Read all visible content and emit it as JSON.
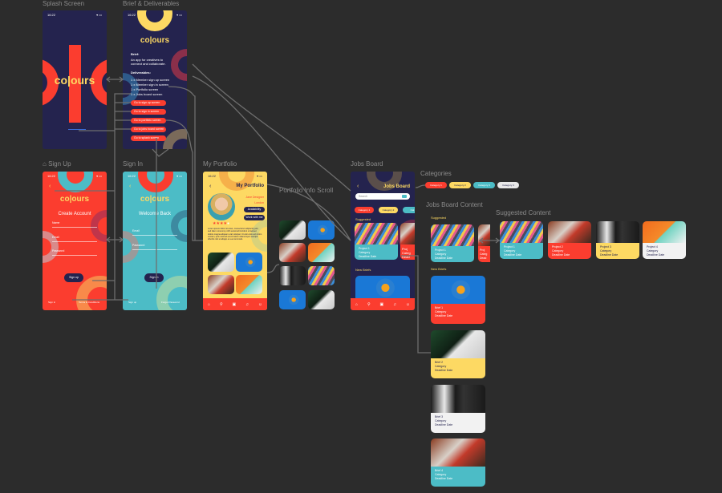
{
  "labels": {
    "splash": "Splash Screen",
    "brief": "Brief & Deliverables",
    "signup": "Sign Up",
    "signin": "Sign In",
    "portfolio": "My Portfolio",
    "scroll": "Portfolio Info Scroll",
    "jobs": "Jobs Board",
    "categories": "Categories",
    "jobs_content": "Jobs Board Content",
    "suggested_content": "Suggested Content"
  },
  "status": {
    "time": "16:22",
    "icons": "▾ ▭"
  },
  "logo": "co|ours",
  "brief": {
    "brief_heading": "Brief:",
    "brief_text_1": "An app for creatives to",
    "brief_text_2": "connect and collaborate.",
    "deliverables_heading": "Deliverables:",
    "deliverables": [
      "1 x Member sign up screen",
      "1 x Member sign in screen",
      "1 x Portfolio screen",
      "1 x Jobs board screen"
    ],
    "buttons": [
      "Go to sign up screen",
      "Go to sign in screen",
      "Go to portfolio screen",
      "Go to jobs board screen",
      "Go to splash screen"
    ]
  },
  "signup": {
    "title": "Create Account",
    "fields": [
      "Name",
      "Email",
      "Password"
    ],
    "button": "Sign up",
    "footer_left": "Sign in",
    "footer_right": "Terms & Conditions"
  },
  "signin": {
    "title": "Welcome Back",
    "fields": [
      "Email",
      "Password"
    ],
    "button": "Sign In",
    "footer_left": "Sign up",
    "footer_right": "Forgot Password"
  },
  "portfolio": {
    "title": "My Portfolio",
    "name": "Jane Designer",
    "location": "London",
    "availability": "Availability",
    "work_button": "Work with me",
    "rating": 4,
    "rating_max": 5,
    "bio": "Lorem ipsum dolor sit amet, consectetur adipiscing elit, sed diam nonummy nibh euismod tincidunt ut laoreet dolore magna aliquam erat volutpat. Ut wisi enim ad minim veniam, quis nostrud exerci tation ullamcorper suscipit lobortis nisl ut aliquip ex ea commodo."
  },
  "jobs": {
    "title": "Jobs Board",
    "search_placeholder": "Search",
    "chips": [
      "Category 1",
      "Category 2",
      "Cat"
    ],
    "suggested": "Suggested",
    "new_briefs": "New Briefs",
    "card1": [
      "Project 1",
      "Category",
      "Deadline Date"
    ],
    "card2": [
      "Proj",
      "Categ",
      "Dead"
    ]
  },
  "categories": [
    "Category 1",
    "Category 2",
    "Category 3",
    "Category 4"
  ],
  "content": {
    "suggested": "Suggested",
    "new_briefs": "New Briefs",
    "suggested_cards": [
      [
        "Project 1",
        "Category",
        "Deadline Date"
      ],
      [
        "Proj",
        "Categ",
        "Dead"
      ]
    ],
    "briefs": [
      [
        "Brief 1",
        "Category",
        "Deadline Date"
      ],
      [
        "Brief 2",
        "Category",
        "Deadline Date"
      ],
      [
        "Brief 3",
        "Category",
        "Deadline Date"
      ],
      [
        "Brief 4",
        "Category",
        "Deadline Date"
      ]
    ]
  },
  "suggested_content": [
    [
      "Project 1",
      "Category",
      "Deadline Date"
    ],
    [
      "Project 2",
      "Category",
      "Deadline Date"
    ],
    [
      "Project 3",
      "Category",
      "Deadline Date"
    ],
    [
      "Project 4",
      "Category",
      "Deadline Date"
    ]
  ],
  "colors": {
    "navy": "#24234e",
    "red": "#fb3d2f",
    "teal": "#4cbcc6",
    "yellow": "#fdd963",
    "canvas": "#2c2c2c"
  }
}
